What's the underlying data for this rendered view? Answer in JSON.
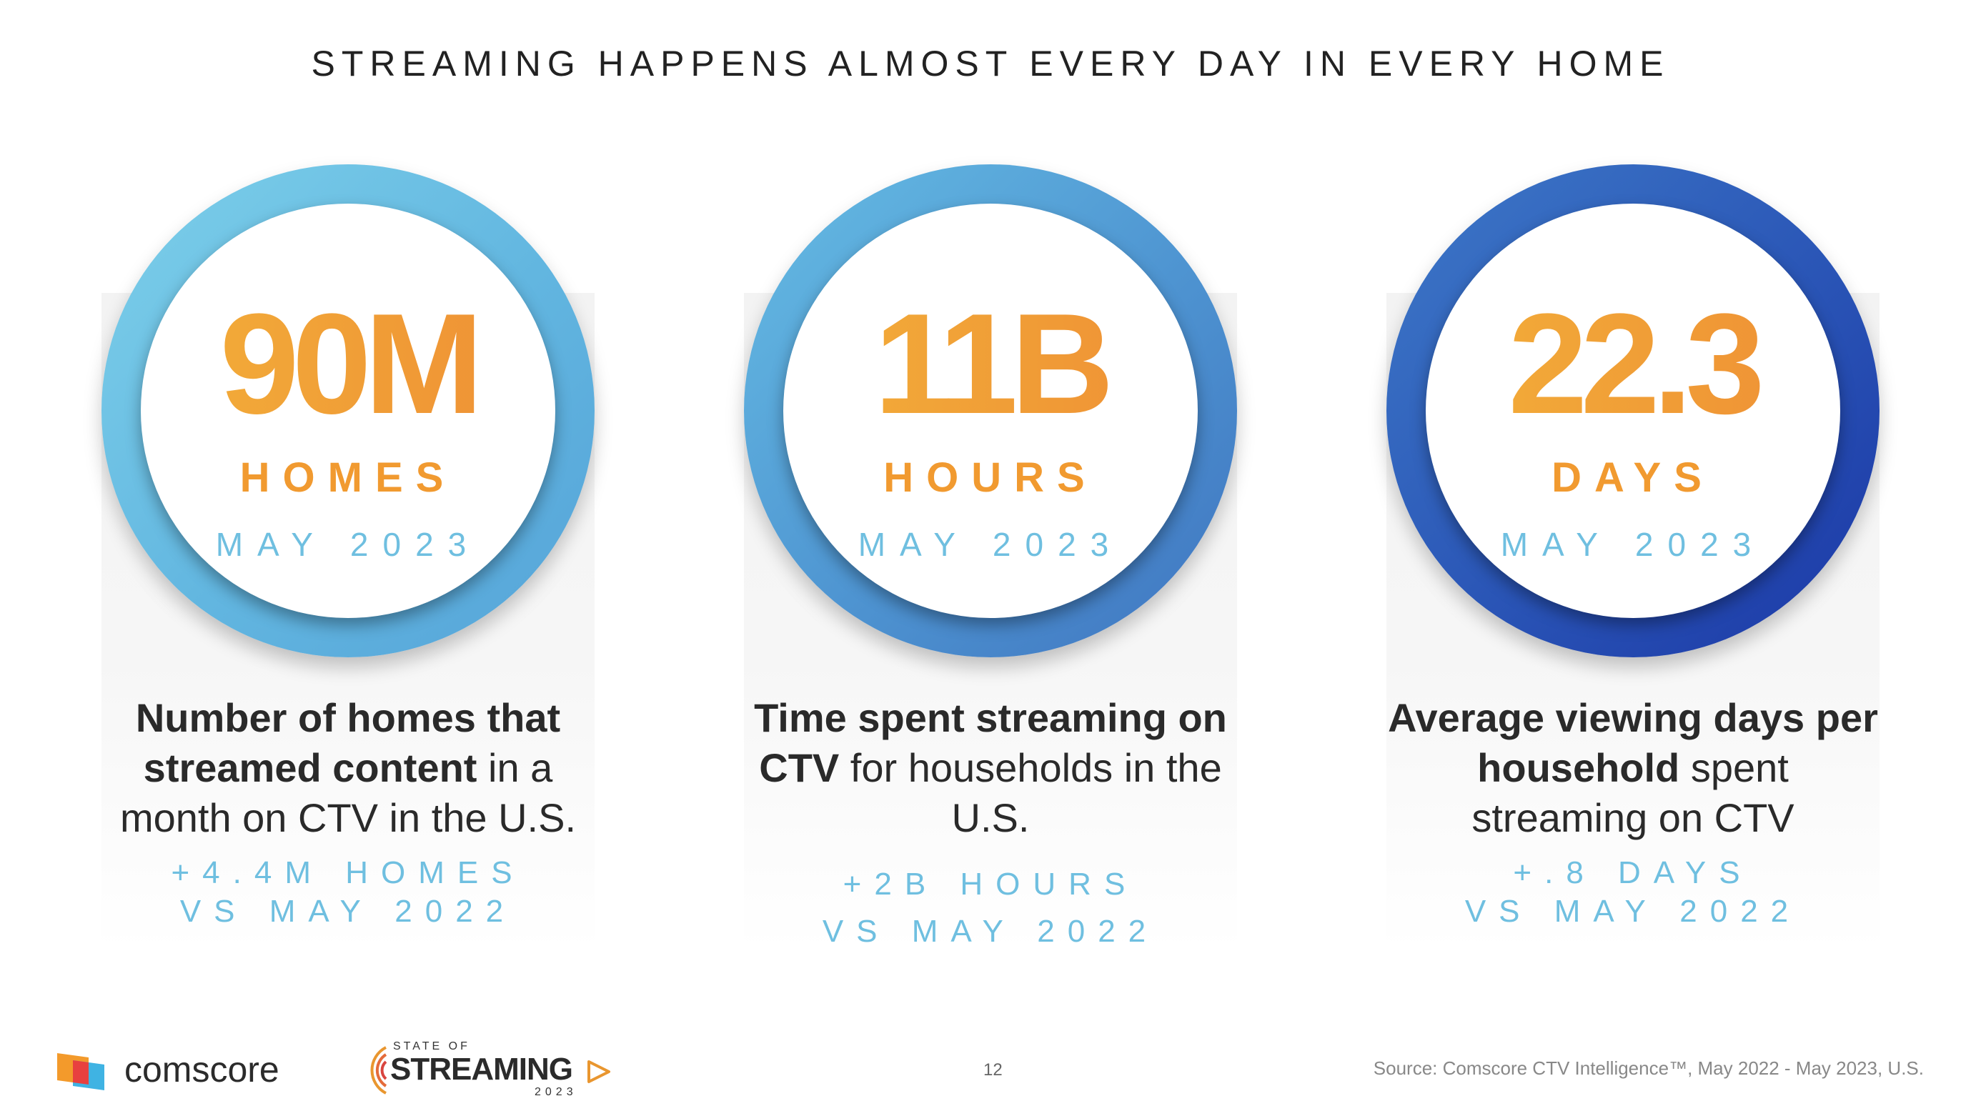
{
  "title": "STREAMING HAPPENS ALMOST EVERY DAY IN EVERY HOME",
  "cards": [
    {
      "value": "90M",
      "unit": "HOMES",
      "date": "MAY 2023",
      "desc_bold_1": "Number of homes that streamed content",
      "desc_rest_1": " in a month on CTV in the U.S.",
      "delta_line_1": "+4.4M HOMES",
      "delta_line_2": "VS MAY 2022"
    },
    {
      "value": "11B",
      "unit": "HOURS",
      "date": "MAY 2023",
      "desc_bold_1": "Time spent streaming on CTV",
      "desc_rest_1": " for households in the U.S.",
      "delta_line_1": "+2B HOURS",
      "delta_line_2": "VS MAY 2022"
    },
    {
      "value": "22.3",
      "unit": "DAYS",
      "date": "MAY 2023",
      "desc_bold_1": "Average viewing days per household",
      "desc_rest_1": " spent streaming on CTV",
      "delta_line_1": "+.8 DAYS",
      "delta_line_2": "VS MAY 2022"
    }
  ],
  "footer": {
    "brand": "comscore",
    "sos_top": "STATE OF",
    "sos_main": "STREAMING",
    "sos_year": "2023",
    "page_number": "12",
    "source": "Source: Comscore CTV Intelligence™, May 2022 - May 2023, U.S."
  },
  "colors": {
    "accent_orange": "#f19a30",
    "accent_blue": "#6fbfe0",
    "ring_1": "#6cc3e4",
    "ring_2": "#4f97d3",
    "ring_3": "#2244b0"
  }
}
